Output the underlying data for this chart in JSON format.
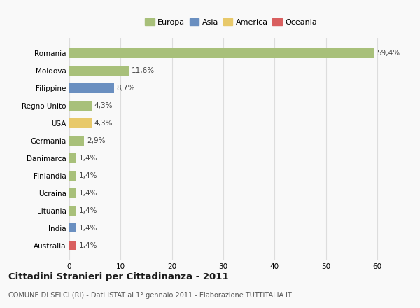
{
  "countries": [
    "Romania",
    "Moldova",
    "Filippine",
    "Regno Unito",
    "USA",
    "Germania",
    "Danimarca",
    "Finlandia",
    "Ucraina",
    "Lituania",
    "India",
    "Australia"
  ],
  "values": [
    59.4,
    11.6,
    8.7,
    4.3,
    4.3,
    2.9,
    1.4,
    1.4,
    1.4,
    1.4,
    1.4,
    1.4
  ],
  "labels": [
    "59,4%",
    "11,6%",
    "8,7%",
    "4,3%",
    "4,3%",
    "2,9%",
    "1,4%",
    "1,4%",
    "1,4%",
    "1,4%",
    "1,4%",
    "1,4%"
  ],
  "colors": [
    "#a8c07a",
    "#a8c07a",
    "#6a8fc0",
    "#a8c07a",
    "#e8c96a",
    "#a8c07a",
    "#a8c07a",
    "#a8c07a",
    "#a8c07a",
    "#a8c07a",
    "#6a8fc0",
    "#d95f5f"
  ],
  "legend": [
    {
      "label": "Europa",
      "color": "#a8c07a"
    },
    {
      "label": "Asia",
      "color": "#6a8fc0"
    },
    {
      "label": "America",
      "color": "#e8c96a"
    },
    {
      "label": "Oceania",
      "color": "#d95f5f"
    }
  ],
  "xlim": [
    0,
    63
  ],
  "xticks": [
    0,
    10,
    20,
    30,
    40,
    50,
    60
  ],
  "title": "Cittadini Stranieri per Cittadinanza - 2011",
  "subtitle": "COMUNE DI SELCI (RI) - Dati ISTAT al 1° gennaio 2011 - Elaborazione TUTTITALIA.IT",
  "bg_color": "#f9f9f9",
  "grid_color": "#dddddd",
  "bar_height": 0.55
}
